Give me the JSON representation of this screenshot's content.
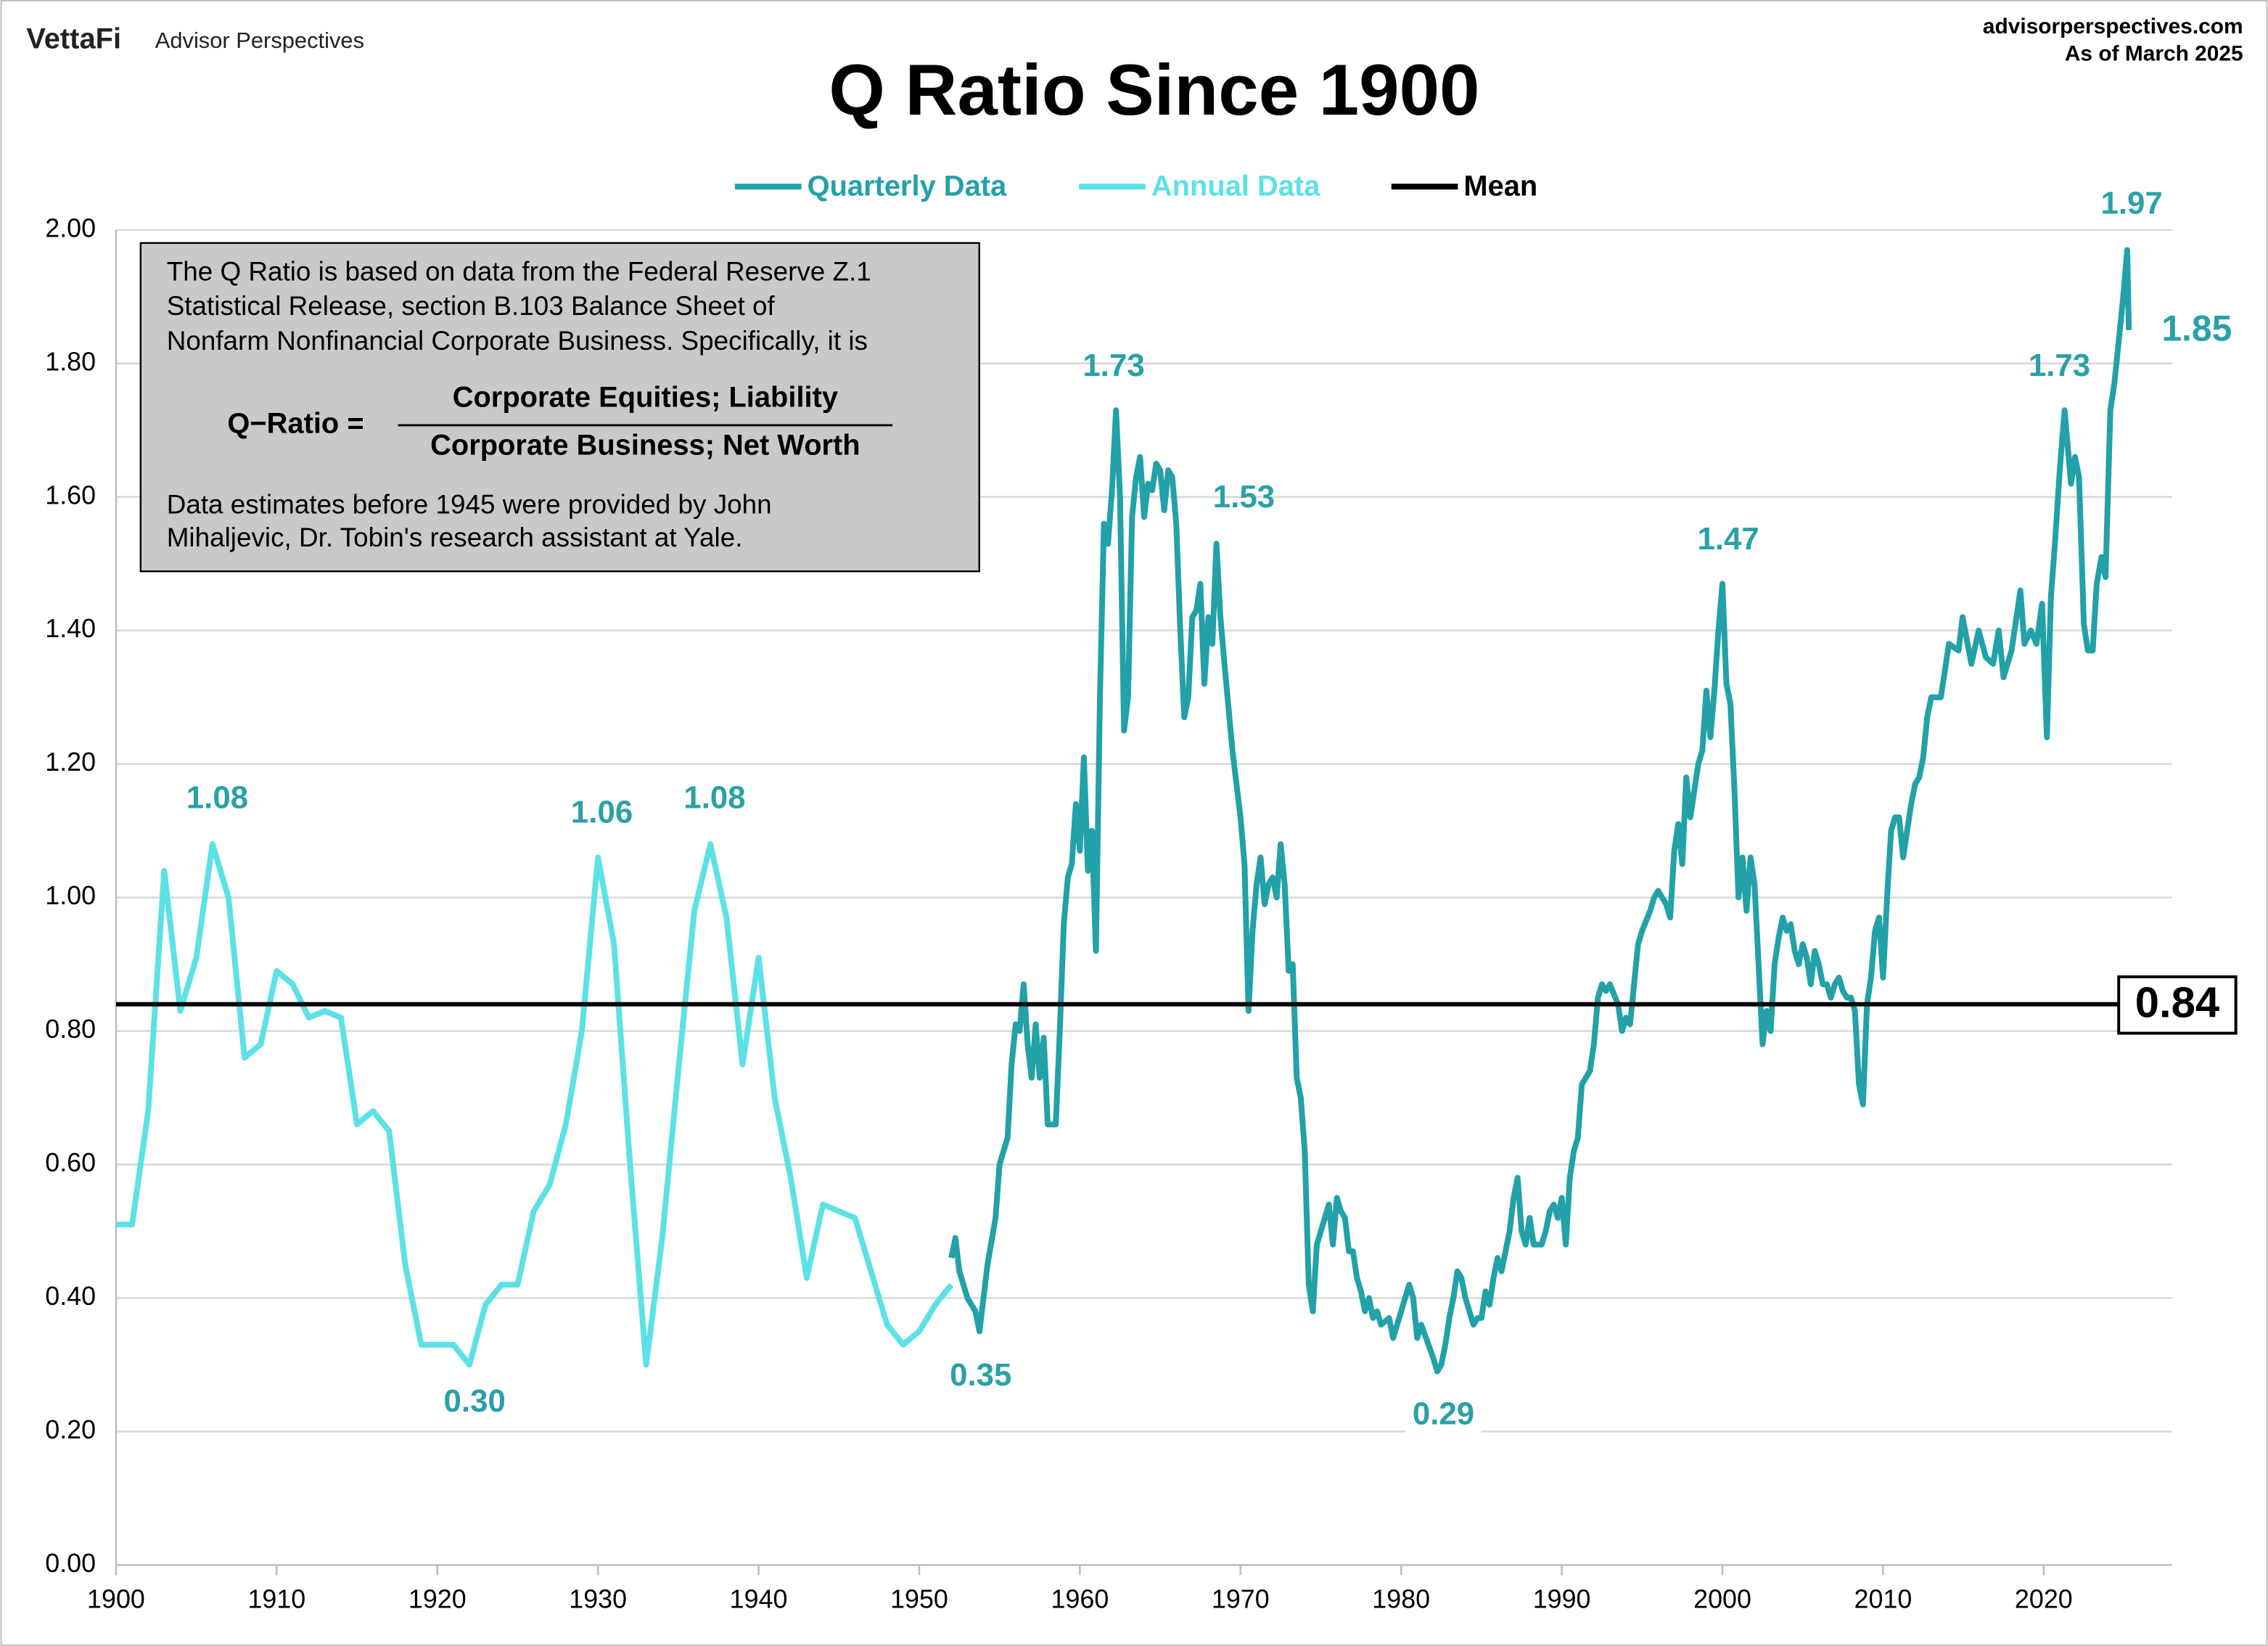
{
  "header": {
    "brand": "VettaFi",
    "publisher": "Advisor Perspectives",
    "source": "advisorperspectives.com",
    "date": "As of March 2025"
  },
  "note": {
    "lines": [
      "The Q Ratio is based on data from the Federal Reserve Z.1",
      "Statistical Release, section B.103 Balance Sheet of",
      "Nonfarm Nonfinancial Corporate Business. Specifically, it is"
    ],
    "formula": {
      "lhs": "Q−Ratio =",
      "numerator": "Corporate Equities; Liability",
      "denominator": "Corporate Business; Net Worth"
    },
    "footer_lines": [
      "Data estimates before 1945 were provided by John",
      "Mihaljevic, Dr. Tobin's research assistant at Yale."
    ]
  },
  "chart_data": {
    "type": "line",
    "title": "Q Ratio Since 1900",
    "xlim": [
      1900,
      2028
    ],
    "xticks": [
      1900,
      1910,
      1920,
      1930,
      1940,
      1950,
      1960,
      1970,
      1980,
      1990,
      2000,
      2010,
      2020
    ],
    "ylim": [
      0,
      2
    ],
    "yticks": [
      {
        "value": 0,
        "label": "0.00"
      },
      {
        "value": 0.2,
        "label": "0.20"
      },
      {
        "value": 0.4,
        "label": "0.40"
      },
      {
        "value": 0.6,
        "label": "0.60"
      },
      {
        "value": 0.8,
        "label": "0.80"
      },
      {
        "value": 1,
        "label": "1.00"
      },
      {
        "value": 1.2,
        "label": "1.20"
      },
      {
        "value": 1.4,
        "label": "1.40"
      },
      {
        "value": 1.6,
        "label": "1.60"
      },
      {
        "value": 1.8,
        "label": "1.80"
      },
      {
        "value": 2,
        "label": "2.00"
      }
    ],
    "grid": true,
    "series": [
      {
        "name": "Quarterly Data",
        "color": "#22a1a8",
        "x": [
          1952,
          1952.25,
          1952.5,
          1953,
          1953.5,
          1953.75,
          1954.25,
          1954.75,
          1955,
          1955.5,
          1955.75,
          1956,
          1956.25,
          1956.5,
          1956.75,
          1957,
          1957.25,
          1957.5,
          1957.75,
          1958,
          1958.5,
          1958.75,
          1959,
          1959.25,
          1959.5,
          1959.75,
          1960,
          1960.25,
          1960.5,
          1960.75,
          1961,
          1961.25,
          1961.5,
          1961.75,
          1962,
          1962.25,
          1962.5,
          1962.75,
          1963,
          1963.25,
          1963.5,
          1963.75,
          1964,
          1964.25,
          1964.5,
          1964.75,
          1965,
          1965.25,
          1965.5,
          1965.75,
          1966,
          1966.25,
          1966.5,
          1966.75,
          1967,
          1967.25,
          1967.5,
          1967.75,
          1968,
          1968.25,
          1968.5,
          1968.75,
          1969,
          1969.5,
          1970,
          1970.25,
          1970.5,
          1970.75,
          1971,
          1971.25,
          1971.5,
          1971.75,
          1972,
          1972.25,
          1972.5,
          1972.75,
          1973,
          1973.25,
          1973.5,
          1973.75,
          1974,
          1974.25,
          1974.5,
          1974.75,
          1975.5,
          1975.75,
          1976,
          1976.25,
          1976.5,
          1976.75,
          1977,
          1977.25,
          1977.5,
          1977.75,
          1978,
          1978.25,
          1978.5,
          1978.75,
          1979.25,
          1979.5,
          1980,
          1980.5,
          1980.75,
          1981,
          1981.25,
          1982,
          1982.25,
          1982.5,
          1982.75,
          1983,
          1983.25,
          1983.5,
          1983.75,
          1984,
          1984.25,
          1984.5,
          1984.75,
          1985,
          1985.25,
          1985.5,
          1985.75,
          1986,
          1986.25,
          1986.5,
          1986.75,
          1987,
          1987.25,
          1987.5,
          1987.75,
          1988,
          1988.25,
          1988.5,
          1988.75,
          1989,
          1989.25,
          1989.5,
          1989.75,
          1990,
          1990.25,
          1990.5,
          1990.75,
          1991,
          1991.25,
          1991.5,
          1991.75,
          1992,
          1992.25,
          1992.5,
          1992.75,
          1993,
          1993.5,
          1993.75,
          1994,
          1994.25,
          1994.5,
          1994.75,
          1995,
          1995.5,
          1995.75,
          1996,
          1996.5,
          1996.75,
          1997,
          1997.25,
          1997.5,
          1997.75,
          1998,
          1998.25,
          1998.5,
          1998.75,
          1999,
          1999.25,
          1999.5,
          1999.75,
          2000,
          2000.25,
          2000.5,
          2000.75,
          2001,
          2001.25,
          2001.5,
          2001.75,
          2002,
          2002.25,
          2002.5,
          2002.75,
          2003,
          2003.25,
          2003.5,
          2003.75,
          2004,
          2004.25,
          2004.5,
          2004.75,
          2005,
          2005.25,
          2005.5,
          2005.75,
          2006,
          2006.25,
          2006.5,
          2006.75,
          2007,
          2007.25,
          2007.5,
          2007.75,
          2008,
          2008.25,
          2008.5,
          2008.75,
          2009,
          2009.25,
          2009.5,
          2009.75,
          2010,
          2010.25,
          2010.5,
          2010.75,
          2011,
          2011.25,
          2011.5,
          2011.75,
          2012,
          2012.25,
          2012.5,
          2012.75,
          2013,
          2013.6,
          2014.1,
          2014.7,
          2014.95,
          2015.5,
          2015.95,
          2016.4,
          2016.85,
          2017.2,
          2017.5,
          2018,
          2018.55,
          2018.8,
          2019.2,
          2019.55,
          2019.9,
          2020.2,
          2020.45,
          2020.7,
          2021,
          2021.3,
          2021.7,
          2021.95,
          2022.2,
          2022.5,
          2022.75,
          2023.05,
          2023.3,
          2023.6,
          2023.85,
          2024.15,
          2024.4,
          2024.7,
          2024.95,
          2025.2,
          2025.3
        ],
        "values": [
          0.46,
          0.49,
          0.44,
          0.4,
          0.38,
          0.35,
          0.45,
          0.52,
          0.6,
          0.64,
          0.75,
          0.81,
          0.8,
          0.87,
          0.78,
          0.73,
          0.81,
          0.73,
          0.79,
          0.66,
          0.66,
          0.8,
          0.96,
          1.03,
          1.05,
          1.14,
          1.07,
          1.21,
          1.04,
          1.1,
          0.92,
          1.3,
          1.56,
          1.53,
          1.61,
          1.73,
          1.6,
          1.25,
          1.3,
          1.57,
          1.63,
          1.66,
          1.57,
          1.62,
          1.61,
          1.65,
          1.64,
          1.58,
          1.64,
          1.63,
          1.56,
          1.4,
          1.27,
          1.3,
          1.42,
          1.43,
          1.47,
          1.32,
          1.42,
          1.38,
          1.53,
          1.42,
          1.35,
          1.22,
          1.12,
          1.05,
          0.83,
          0.95,
          1.02,
          1.06,
          0.99,
          1.02,
          1.03,
          1.0,
          1.08,
          1.02,
          0.89,
          0.9,
          0.73,
          0.7,
          0.62,
          0.42,
          0.38,
          0.48,
          0.54,
          0.48,
          0.55,
          0.53,
          0.52,
          0.47,
          0.47,
          0.43,
          0.41,
          0.38,
          0.4,
          0.37,
          0.38,
          0.36,
          0.37,
          0.34,
          0.38,
          0.42,
          0.4,
          0.34,
          0.36,
          0.31,
          0.29,
          0.3,
          0.33,
          0.37,
          0.4,
          0.44,
          0.43,
          0.4,
          0.38,
          0.36,
          0.37,
          0.37,
          0.41,
          0.39,
          0.43,
          0.46,
          0.44,
          0.47,
          0.5,
          0.55,
          0.58,
          0.5,
          0.48,
          0.52,
          0.48,
          0.48,
          0.48,
          0.5,
          0.53,
          0.54,
          0.52,
          0.55,
          0.48,
          0.58,
          0.62,
          0.64,
          0.72,
          0.73,
          0.74,
          0.78,
          0.85,
          0.87,
          0.86,
          0.87,
          0.84,
          0.8,
          0.82,
          0.81,
          0.87,
          0.93,
          0.95,
          0.98,
          1.0,
          1.01,
          0.99,
          0.97,
          1.07,
          1.11,
          1.05,
          1.18,
          1.12,
          1.16,
          1.2,
          1.22,
          1.31,
          1.24,
          1.31,
          1.4,
          1.47,
          1.32,
          1.29,
          1.16,
          1.0,
          1.06,
          0.98,
          1.06,
          1.02,
          0.9,
          0.78,
          0.83,
          0.8,
          0.9,
          0.94,
          0.97,
          0.95,
          0.96,
          0.92,
          0.9,
          0.93,
          0.91,
          0.87,
          0.92,
          0.9,
          0.87,
          0.87,
          0.85,
          0.87,
          0.88,
          0.86,
          0.85,
          0.85,
          0.83,
          0.72,
          0.69,
          0.84,
          0.88,
          0.95,
          0.97,
          0.88,
          1.0,
          1.1,
          1.12,
          1.12,
          1.06,
          1.1,
          1.14,
          1.17,
          1.18,
          1.21,
          1.27,
          1.3,
          1.3,
          1.38,
          1.37,
          1.42,
          1.35,
          1.4,
          1.36,
          1.35,
          1.4,
          1.33,
          1.37,
          1.46,
          1.38,
          1.4,
          1.38,
          1.44,
          1.24,
          1.45,
          1.53,
          1.64,
          1.73,
          1.62,
          1.66,
          1.63,
          1.41,
          1.37,
          1.37,
          1.47,
          1.51,
          1.48,
          1.73,
          1.77,
          1.84,
          1.9,
          1.97,
          1.85
        ]
      },
      {
        "name": "Annual Data",
        "color": "#5ce1e6",
        "x": [
          1900,
          1901,
          1902,
          1903,
          1904,
          1905,
          1906,
          1907,
          1908,
          1909,
          1910,
          1911,
          1912,
          1913,
          1914,
          1915,
          1916,
          1917,
          1918,
          1919,
          1920,
          1921,
          1922,
          1923,
          1924,
          1925,
          1926,
          1927,
          1928,
          1929,
          1930,
          1931,
          1932,
          1933,
          1934,
          1935,
          1936,
          1937,
          1938,
          1939,
          1940,
          1941,
          1942,
          1943,
          1944,
          1945,
          1946,
          1947,
          1948,
          1949,
          1950,
          1951,
          1952
        ],
        "values": [
          0.51,
          0.51,
          0.68,
          1.04,
          0.83,
          0.91,
          1.08,
          1.0,
          0.76,
          0.78,
          0.89,
          0.87,
          0.82,
          0.83,
          0.82,
          0.66,
          0.68,
          0.65,
          0.45,
          0.33,
          0.33,
          0.33,
          0.3,
          0.39,
          0.42,
          0.42,
          0.53,
          0.57,
          0.66,
          0.8,
          1.06,
          0.93,
          0.6,
          0.3,
          0.49,
          0.74,
          0.98,
          1.08,
          0.97,
          0.75,
          0.91,
          0.7,
          0.58,
          0.43,
          0.54,
          0.53,
          0.52,
          0.44,
          0.36,
          0.33,
          0.35,
          0.39,
          0.42
        ]
      }
    ],
    "mean": {
      "name": "Mean",
      "value": 0.84,
      "color": "#000000"
    },
    "annotations": [
      "1.08",
      "0.30",
      "1.06",
      "1.08",
      "0.35",
      "1.73",
      "1.53",
      "0.29",
      "1.47",
      "1.73",
      "1.97",
      "1.85"
    ],
    "annotation_color": "#2aa0a7"
  }
}
